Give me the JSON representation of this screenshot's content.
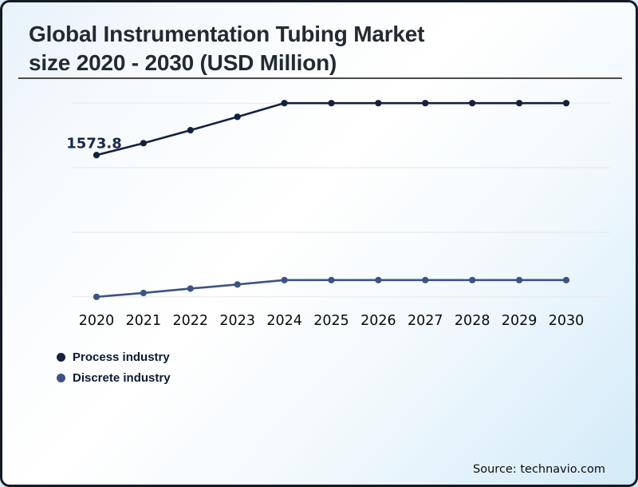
{
  "card": {
    "title_line1": "Global Instrumentation Tubing Market",
    "title_line2": "size 2020 - 2030 (USD Million)",
    "source": "Source: technavio.com"
  },
  "colors": {
    "process_series": "#14213d",
    "discrete_series": "#3e5283",
    "gridline": "#e8e8e3",
    "axis_label": "#0b0b0b",
    "annotation": "#16284f",
    "border": "#141b26",
    "background_light": "#ffffff",
    "background_blue": "#d2eaf8"
  },
  "legend": [
    {
      "label": "Process industry",
      "color": "#14213d"
    },
    {
      "label": "Discrete industry",
      "color": "#3e5283"
    }
  ],
  "chart_data": {
    "type": "line",
    "title": "Global Instrumentation Tubing Market size 2020 - 2030 (USD Million)",
    "xlabel": "",
    "ylabel": "",
    "categories": [
      2020,
      2021,
      2022,
      2023,
      2024,
      2025,
      2026,
      2027,
      2028,
      2029,
      2030
    ],
    "series": [
      {
        "name": "Process industry",
        "color": "#14213d",
        "values": [
          1573.8,
          1620,
          1670,
          1722,
          1775,
          1775,
          1775,
          1775,
          1775,
          1775,
          1775
        ]
      },
      {
        "name": "Discrete industry",
        "color": "#3e5283",
        "values": [
          1025,
          1040,
          1057,
          1073,
          1090,
          1090,
          1090,
          1090,
          1090,
          1090,
          1090
        ]
      }
    ],
    "annotations": [
      {
        "series": "Process industry",
        "category": 2020,
        "text": "1573.8"
      }
    ],
    "ylim": [
      975,
      1825
    ],
    "gridlines": [
      1025,
      1275,
      1525,
      1775
    ],
    "grid": "horizontal-only",
    "y_axis_labels": false,
    "legend_position": "bottom-left"
  }
}
